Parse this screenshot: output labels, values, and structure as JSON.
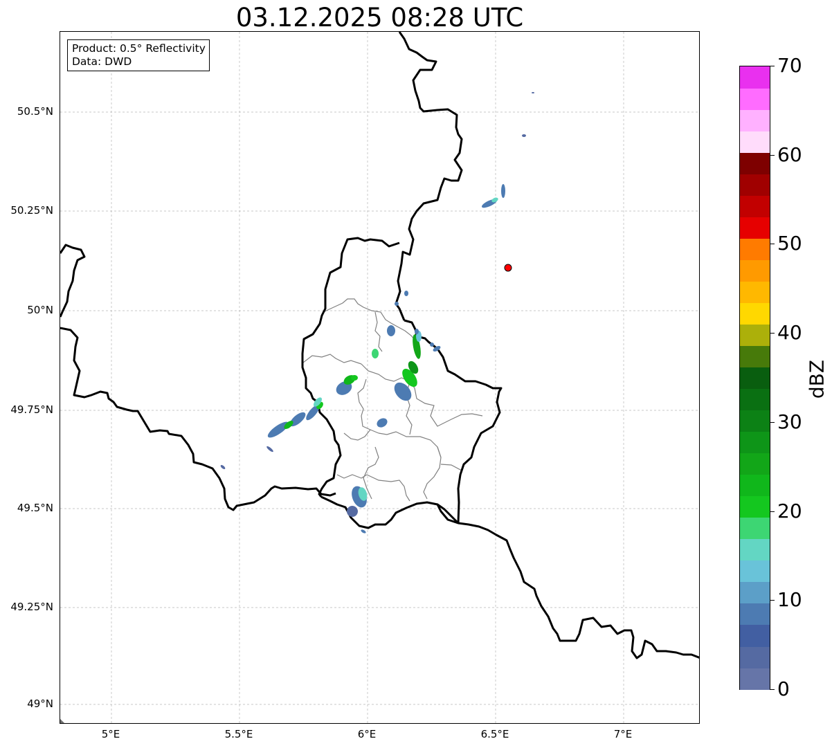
{
  "title": "03.12.2025 08:28 UTC",
  "info_box": {
    "product": "Product: 0.5° Reflectivity",
    "data": "Data: DWD"
  },
  "map": {
    "lat_labels": [
      "50.5°N",
      "50.25°N",
      "50°N",
      "49.75°N",
      "49.5°N",
      "49.25°N",
      "49°N"
    ],
    "lon_labels": [
      "5°E",
      "5.5°E",
      "6°E",
      "6.5°E",
      "7°E"
    ],
    "radar_marker": {
      "name": "radar-site",
      "color": "#ff0000"
    }
  },
  "colorbar": {
    "label": "dBZ",
    "min": 0,
    "max": 70,
    "tick_labels": [
      "0",
      "10",
      "20",
      "30",
      "40",
      "50",
      "60",
      "70"
    ],
    "colors": [
      "#6675a8",
      "#556aa2",
      "#425fa2",
      "#4d7bb2",
      "#5c9fc8",
      "#69c3d9",
      "#63d6c3",
      "#3dd673",
      "#14c71f",
      "#10b71b",
      "#12a618",
      "#0e9518",
      "#0c8115",
      "#0a7012",
      "#095e0f",
      "#477a0a",
      "#acb00a",
      "#ffd800",
      "#ffb800",
      "#ff9a00",
      "#ff7b00",
      "#e60000",
      "#c20000",
      "#a00000",
      "#7e0000",
      "#ffdcfb",
      "#ffb1ff",
      "#ff6cff",
      "#e930ef"
    ]
  }
}
